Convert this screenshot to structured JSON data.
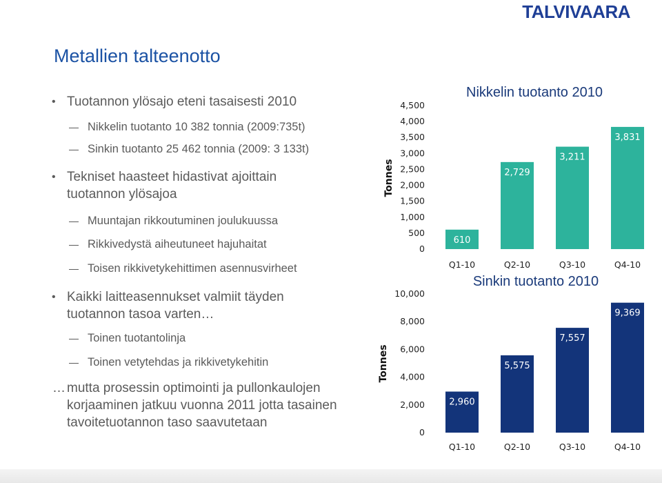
{
  "logo": "TALVIVAARA",
  "title": "Metallien talteenotto",
  "bullets": [
    {
      "level": 1,
      "text": "Tuotannon ylösajo eteni tasaisesti 2010"
    },
    {
      "level": 2,
      "text": "Nikkelin tuotanto 10 382 tonnia (2009:735t)"
    },
    {
      "level": 2,
      "text": "Sinkin tuotanto 25 462 tonnia (2009: 3 133t)"
    },
    {
      "level": 1,
      "text": "Tekniset haasteet hidastivat ajoittain tuotannon ylösajoa"
    },
    {
      "level": 2,
      "text": "Muuntajan rikkoutuminen joulukuussa"
    },
    {
      "level": 2,
      "text": "Rikkivedystä aiheutuneet hajuhaitat"
    },
    {
      "level": 2,
      "text": "Toisen rikkivetykehittimen asennusvirheet"
    },
    {
      "level": 1,
      "text": "Kaikki laitteasennukset valmiit täyden tuotannon tasoa varten…"
    },
    {
      "level": 2,
      "text": "Toinen tuotantolinja"
    },
    {
      "level": 2,
      "text": "Toinen vetytehdas ja rikkivetykehitin"
    }
  ],
  "closing": {
    "marker": "…",
    "text": "mutta prosessin optimointi ja pullonkaulojen korjaaminen jatkuu vuonna 2011 jotta tasainen tavoitetuotannon taso saavutetaan"
  },
  "chart_data": [
    {
      "type": "bar",
      "title": "Nikkelin tuotanto 2010",
      "ylabel": "Tonnes",
      "xlabel": "",
      "categories": [
        "Q1-10",
        "Q2-10",
        "Q3-10",
        "Q4-10"
      ],
      "values": [
        610,
        2729,
        3211,
        3831
      ],
      "value_labels": [
        "610",
        "2,729",
        "3,211",
        "3,831"
      ],
      "ylim": [
        0,
        4500
      ],
      "yticks": [
        0,
        500,
        1000,
        1500,
        2000,
        2500,
        3000,
        3500,
        4000,
        4500
      ],
      "ytick_labels": [
        "0",
        "500",
        "1,000",
        "1,500",
        "2,000",
        "2,500",
        "3,000",
        "3,500",
        "4,000",
        "4,500"
      ],
      "grid": false,
      "color": "#2db39c"
    },
    {
      "type": "bar",
      "title": "Sinkin tuotanto 2010",
      "ylabel": "Tonnes",
      "xlabel": "",
      "categories": [
        "Q1-10",
        "Q2-10",
        "Q3-10",
        "Q4-10"
      ],
      "values": [
        2960,
        5575,
        7557,
        9369
      ],
      "value_labels": [
        "2,960",
        "5,575",
        "7,557",
        "9,369"
      ],
      "ylim": [
        0,
        10000
      ],
      "yticks": [
        0,
        2000,
        4000,
        6000,
        8000,
        10000
      ],
      "ytick_labels": [
        "0",
        "2,000",
        "4,000",
        "6,000",
        "8,000",
        "10,000"
      ],
      "grid": false,
      "color": "#13347a"
    }
  ]
}
